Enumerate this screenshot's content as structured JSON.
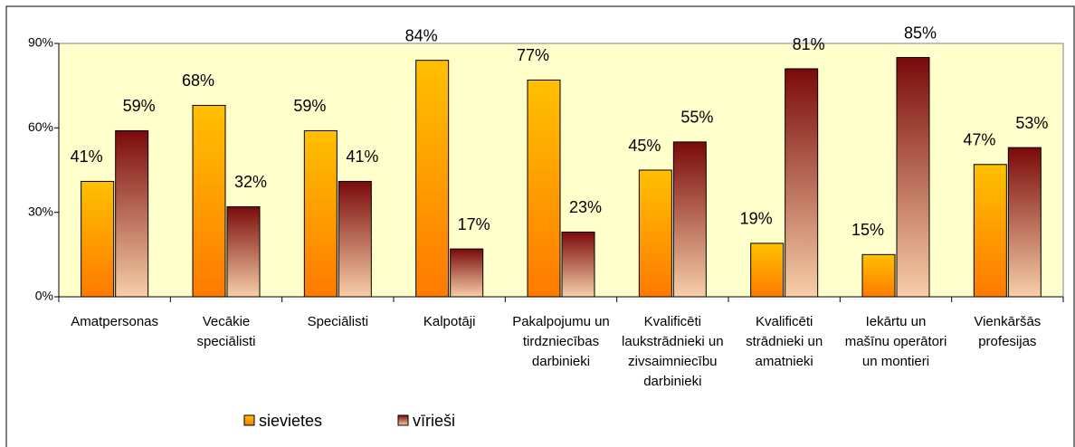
{
  "chart_data": {
    "type": "bar",
    "categories": [
      "Amatpersonas",
      "Vecākie speciālisti",
      "Speciālisti",
      "Kalpotāji",
      "Pakalpojumu un tirdzniecības darbinieki",
      "Kvalificēti laukstrādnieki un zivsaimniecību darbinieki",
      "Kvalificēti strādnieki un amatnieki",
      "Iekārtu un mašīnu operātori un montieri",
      "Vienkāršās profesijas"
    ],
    "series": [
      {
        "name": "sievietes",
        "color": "#ffc000",
        "values": [
          41,
          68,
          59,
          84,
          77,
          45,
          19,
          15,
          47
        ],
        "value_labels": [
          "41%",
          "68%",
          "59%",
          "84%",
          "77%",
          "45%",
          "19%",
          "15%",
          "47%"
        ]
      },
      {
        "name": "vīrieši",
        "color": "#7a0a0a",
        "values": [
          59,
          32,
          41,
          17,
          23,
          55,
          81,
          85,
          53
        ],
        "value_labels": [
          "59%",
          "32%",
          "41%",
          "17%",
          "23%",
          "55%",
          "81%",
          "85%",
          "53%"
        ]
      }
    ],
    "ylim": [
      0,
      90
    ],
    "yticks": [
      {
        "value": 0,
        "label": "0%"
      },
      {
        "value": 30,
        "label": "30%"
      },
      {
        "value": 60,
        "label": "60%"
      },
      {
        "value": 90,
        "label": "90%"
      }
    ],
    "grid": false
  }
}
